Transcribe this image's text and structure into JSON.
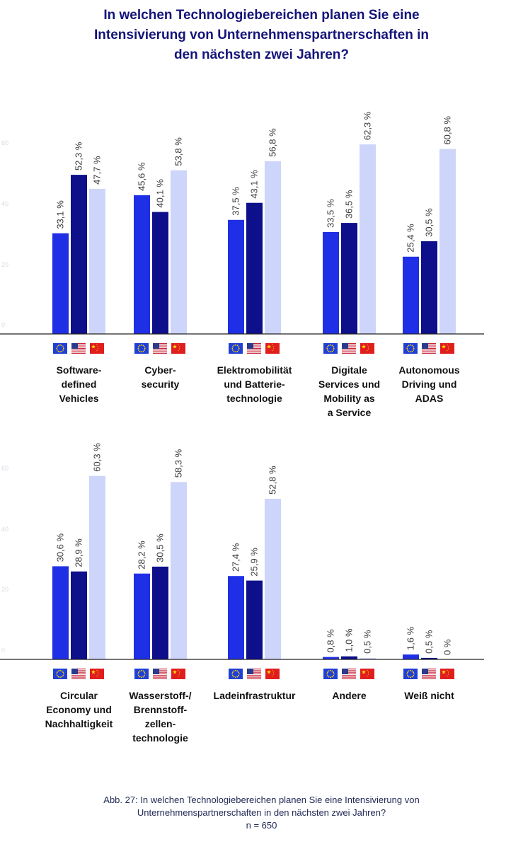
{
  "title_lines": [
    "In welchen Technologiebereichen planen Sie eine",
    "Intensivierung von Unternehmenspartnerschaften in",
    "den nächsten zwei Jahren?"
  ],
  "caption_lines": [
    "Abb. 27: In welchen Technologiebereichen planen Sie eine Intensivierung von",
    "Unternehmenspartnerschaften in den nächsten zwei Jahren?",
    "n = 650"
  ],
  "icons": [
    "eu-flag-icon",
    "us-flag-icon",
    "china-flag-icon"
  ],
  "colors": {
    "eu": "#1f2fe6",
    "us": "#0e0f8a",
    "china": "#cdd5fb",
    "title": "#14147a",
    "tick": "#d7dbe3"
  },
  "chart_data": [
    {
      "type": "bar",
      "ylim": [
        0,
        70
      ],
      "yticks": [
        "0",
        "20",
        "40",
        "60"
      ],
      "grid": false,
      "categories": [
        [
          "Software-",
          "defined",
          "Vehicles"
        ],
        [
          "Cyber-",
          "security"
        ],
        [
          "Elektromobilität",
          "und Batterie-",
          "technologie"
        ],
        [
          "Digitale",
          "Services und",
          "Mobility as",
          "a Service"
        ],
        [
          "Autonomous",
          "Driving und",
          "ADAS"
        ]
      ],
      "series": [
        {
          "values": [
            33.1,
            45.6,
            37.5,
            33.5,
            25.4
          ],
          "labels": [
            "33,1 %",
            "45,6 %",
            "37,5 %",
            "33,5 %",
            "25,4 %"
          ]
        },
        {
          "values": [
            52.3,
            40.1,
            43.1,
            36.5,
            30.5
          ],
          "labels": [
            "52,3 %",
            "40,1 %",
            "43,1 %",
            "36,5 %",
            "30,5 %"
          ]
        },
        {
          "values": [
            47.7,
            53.8,
            56.8,
            62.3,
            60.8
          ],
          "labels": [
            "47,7 %",
            "53,8 %",
            "56,8 %",
            "62,3 %",
            "60,8 %"
          ]
        }
      ]
    },
    {
      "type": "bar",
      "ylim": [
        0,
        70
      ],
      "yticks": [
        "0",
        "20",
        "40",
        "60"
      ],
      "grid": false,
      "categories": [
        [
          "Circular",
          "Economy und",
          "Nachhaltigkeit"
        ],
        [
          "Wasserstoff-/",
          "Brennstoff-",
          "zellen-",
          "technologie"
        ],
        [
          "Ladeinfrastruktur"
        ],
        [
          "Andere"
        ],
        [
          "Weiß nicht"
        ]
      ],
      "series": [
        {
          "values": [
            30.6,
            28.2,
            27.4,
            0.8,
            1.6
          ],
          "labels": [
            "30,6 %",
            "28,2 %",
            "27,4 %",
            "0,8 %",
            "1,6 %"
          ]
        },
        {
          "values": [
            28.9,
            30.5,
            25.9,
            1.0,
            0.5
          ],
          "labels": [
            "28,9 %",
            "30,5 %",
            "25,9 %",
            "1,0 %",
            "0,5 %"
          ]
        },
        {
          "values": [
            60.3,
            58.3,
            52.8,
            0.5,
            0
          ],
          "labels": [
            "60,3 %",
            "58,3 %",
            "52,8 %",
            "0,5 %",
            "0 %"
          ]
        }
      ]
    }
  ]
}
